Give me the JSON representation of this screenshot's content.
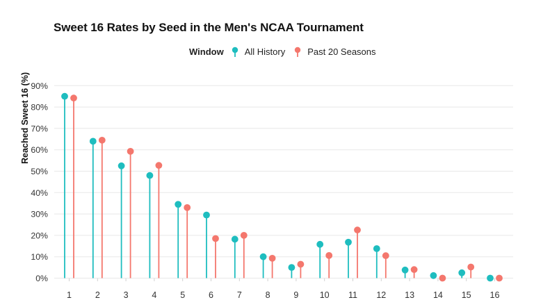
{
  "chart_data": {
    "type": "lollipop",
    "title": "Sweet 16 Rates by Seed in the Men's NCAA Tournament",
    "xlabel": "",
    "ylabel": "Reached Sweet 16 (%)",
    "ylim": [
      0,
      90
    ],
    "yticks": [
      0,
      10,
      20,
      30,
      40,
      50,
      60,
      70,
      80,
      90
    ],
    "ytick_labels": [
      "0%",
      "10%",
      "20%",
      "30%",
      "40%",
      "50%",
      "60%",
      "70%",
      "80%",
      "90%"
    ],
    "categories": [
      "1",
      "2",
      "3",
      "4",
      "5",
      "6",
      "7",
      "8",
      "9",
      "10",
      "11",
      "12",
      "13",
      "14",
      "15",
      "16"
    ],
    "grid": "horizontal",
    "legend": {
      "title": "Window",
      "placement": "top"
    },
    "series": [
      {
        "name": "All History",
        "color": "#1ebdbf",
        "values": [
          85,
          64,
          52.5,
          48,
          34.5,
          29.5,
          18.2,
          10,
          5,
          15.8,
          16.8,
          13.8,
          3.8,
          1.2,
          2.5,
          0
        ]
      },
      {
        "name": "Past 20 Seasons",
        "color": "#f4776d",
        "values": [
          84.2,
          64.5,
          59.3,
          52.7,
          33,
          18.5,
          20,
          9.3,
          6.5,
          10.6,
          22.5,
          10.5,
          4,
          0,
          5.2,
          0
        ]
      }
    ]
  }
}
